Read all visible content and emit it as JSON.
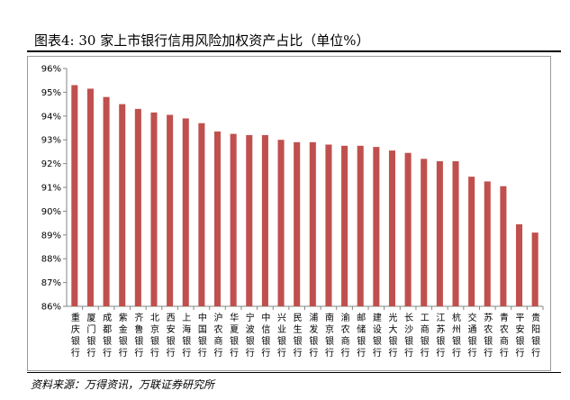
{
  "figure_title": "图表4:    30 家上市银行信用风险加权资产占比（单位%）",
  "source": "资料来源：万得资讯，万联证券研究所",
  "colors": {
    "bar": "#C0504D",
    "axis": "#868686",
    "frame": "#9a9a9a"
  },
  "chart_data": {
    "type": "bar",
    "title": "",
    "xlabel": "",
    "ylabel": "",
    "ylim": [
      86,
      96
    ],
    "yticks": [
      86,
      87,
      88,
      89,
      90,
      91,
      92,
      93,
      94,
      95,
      96
    ],
    "ytick_labels": [
      "86%",
      "87%",
      "88%",
      "89%",
      "90%",
      "91%",
      "92%",
      "93%",
      "94%",
      "95%",
      "96%"
    ],
    "grid": false,
    "legend": "none",
    "categories": [
      "重庆银行",
      "厦门银行",
      "成都银行",
      "紫金银行",
      "齐鲁银行",
      "北京银行",
      "西安银行",
      "上海银行",
      "中国银行",
      "沪农商行",
      "华夏银行",
      "宁波银行",
      "中信银行",
      "兴业银行",
      "民生银行",
      "浦发银行",
      "南京银行",
      "渝农商行",
      "邮储银行",
      "建设银行",
      "光大银行",
      "长沙银行",
      "工商银行",
      "江苏银行",
      "杭州银行",
      "交通银行",
      "苏农银行",
      "青农商行",
      "平安银行",
      "贵阳银行"
    ],
    "values": [
      95.3,
      95.15,
      94.8,
      94.5,
      94.3,
      94.15,
      94.05,
      93.9,
      93.7,
      93.35,
      93.25,
      93.2,
      93.2,
      93.0,
      92.9,
      92.9,
      92.8,
      92.75,
      92.75,
      92.7,
      92.55,
      92.45,
      92.2,
      92.1,
      92.1,
      91.45,
      91.25,
      91.05,
      89.45,
      89.1
    ]
  }
}
